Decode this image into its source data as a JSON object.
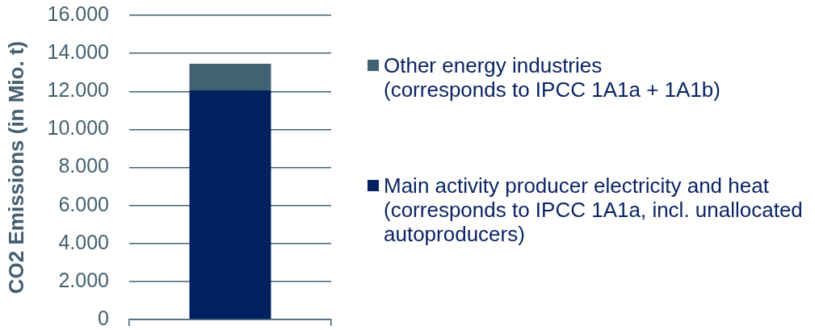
{
  "chart_data": {
    "type": "bar",
    "stacked": true,
    "categories": [
      null
    ],
    "series": [
      {
        "name": "Main activity producer electricity and heat (corresponds to IPCC 1A1a, incl. unallocated autoproducers)",
        "color": "#002060",
        "values": [
          12050
        ]
      },
      {
        "name": "Other energy industries (corresponds to IPCC 1A1a + 1A1b)",
        "color": "#406272",
        "values": [
          1400
        ]
      }
    ],
    "ylabel": "CO2 Emissions (in Mio. t)",
    "ylim": [
      0,
      16000
    ],
    "yticks": [
      0,
      {
        "value": 2000,
        "label": "2.000"
      },
      {
        "value": 4000,
        "label": "4.000"
      },
      {
        "value": 6000,
        "label": "6.000"
      },
      {
        "value": 8000,
        "label": "8.000"
      },
      {
        "value": 10000,
        "label": "10.000"
      },
      {
        "value": 12000,
        "label": "12.000"
      },
      {
        "value": 14000,
        "label": "14.000"
      },
      {
        "value": 16000,
        "label": "16.000"
      }
    ],
    "grid": "y",
    "legend": "right"
  }
}
